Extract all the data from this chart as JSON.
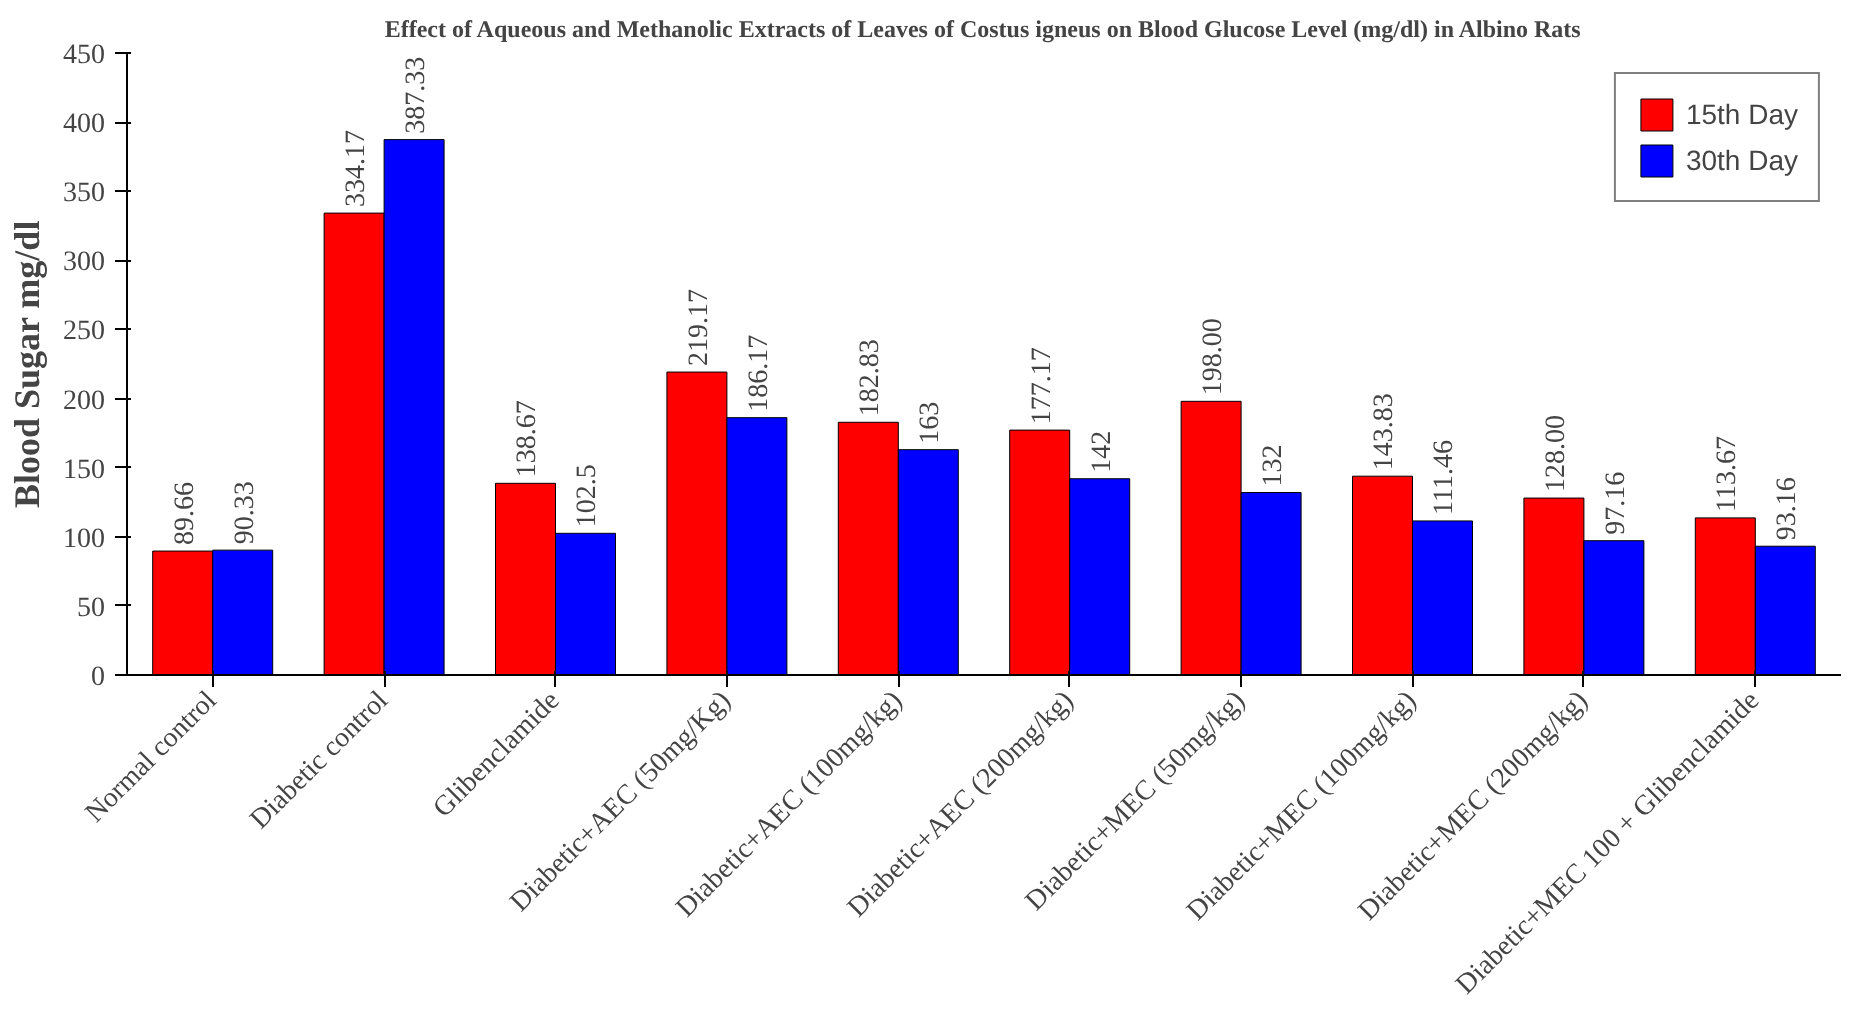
{
  "chart_data": {
    "type": "bar",
    "title": "Effect of Aqueous and Methanolic Extracts of Leaves of Costus igneus on Blood Glucose Level (mg/dl) in Albino Rats",
    "ylabel": "Blood Sugar mg/dl",
    "categories": [
      "Normal control",
      "Diabetic control",
      "Glibenclamide",
      "Diabetic+AEC (50mg/Kg)",
      "Diabetic+AEC (100mg/kg)",
      "Diabetic+AEC (200mg/kg)",
      "Diabetic+MEC (50mg/kg)",
      "Diabetic+MEC (100mg/kg)",
      "Diabetic+MEC (200mg/kg)",
      "Diabetic+MEC 100 + Glibenclamide"
    ],
    "series": [
      {
        "name": "15th Day",
        "color": "#ff0000",
        "values": [
          89.66,
          334.17,
          138.67,
          219.17,
          182.83,
          177.17,
          198.0,
          143.83,
          128.0,
          113.67
        ],
        "value_labels": [
          "89.66",
          "334.17",
          "138.67",
          "219.17",
          "182.83",
          "177.17",
          "198.00",
          "143.83",
          "128.00",
          "113.67"
        ]
      },
      {
        "name": "30th Day",
        "color": "#0000ff",
        "values": [
          90.33,
          387.33,
          102.5,
          186.17,
          163,
          142,
          132,
          111.46,
          97.16,
          93.16
        ],
        "value_labels": [
          "90.33",
          "387.33",
          "102.5",
          "186.17",
          "163",
          "142",
          "132",
          "111.46",
          "97.16",
          "93.16"
        ]
      }
    ],
    "ylim": [
      0,
      450
    ],
    "yticks": [
      0,
      50,
      100,
      150,
      200,
      250,
      300,
      350,
      400,
      450
    ],
    "grid": false,
    "legend": "top right"
  }
}
